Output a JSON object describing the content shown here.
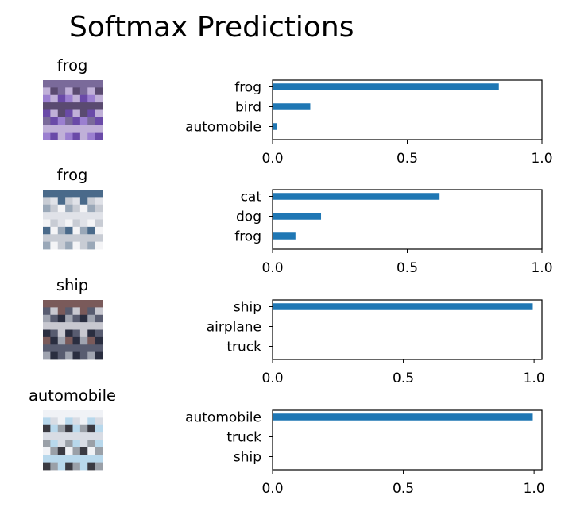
{
  "figure": {
    "title": "Softmax Predictions"
  },
  "chart_data": [
    {
      "type": "bar",
      "orientation": "horizontal",
      "image_title": "frog",
      "image_palette": [
        "#7a6a9a",
        "#9b7fd0",
        "#6a4aa8",
        "#c0b0d8",
        "#5a4a70"
      ],
      "categories": [
        "frog",
        "bird",
        "automobile"
      ],
      "values": [
        0.84,
        0.14,
        0.015
      ],
      "xlim": [
        0,
        1
      ],
      "xticks": [
        "0.0",
        "0.5",
        "1.0"
      ],
      "xlabel": "",
      "ylabel": ""
    },
    {
      "type": "bar",
      "orientation": "horizontal",
      "image_title": "frog",
      "image_palette": [
        "#c8ccd4",
        "#e0e2e8",
        "#4a6a8a",
        "#9aa8b8",
        "#f4f4f6"
      ],
      "categories": [
        "cat",
        "dog",
        "frog"
      ],
      "values": [
        0.62,
        0.18,
        0.085
      ],
      "xlim": [
        0,
        1
      ],
      "xticks": [
        "0.0",
        "0.5",
        "1.0"
      ],
      "xlabel": "",
      "ylabel": ""
    },
    {
      "type": "bar",
      "orientation": "horizontal",
      "image_title": "ship",
      "image_palette": [
        "#a0a4b0",
        "#2a2e40",
        "#585c70",
        "#c8c8d0",
        "#7a5a5a"
      ],
      "categories": [
        "ship",
        "airplane",
        "truck"
      ],
      "values": [
        0.995,
        0.0,
        0.0
      ],
      "xlim": [
        0,
        1.03
      ],
      "xticks": [
        "0.0",
        "0.5",
        "1.0"
      ],
      "xlabel": "",
      "ylabel": ""
    },
    {
      "type": "bar",
      "orientation": "horizontal",
      "image_title": "automobile",
      "image_palette": [
        "#d8dce4",
        "#f0f2f6",
        "#3a3a42",
        "#9aa0a8",
        "#b8d8ec"
      ],
      "categories": [
        "automobile",
        "truck",
        "ship"
      ],
      "values": [
        0.995,
        0.0,
        0.0
      ],
      "xlim": [
        0,
        1.03
      ],
      "xticks": [
        "0.0",
        "0.5",
        "1.0"
      ],
      "xlabel": "",
      "ylabel": ""
    }
  ]
}
